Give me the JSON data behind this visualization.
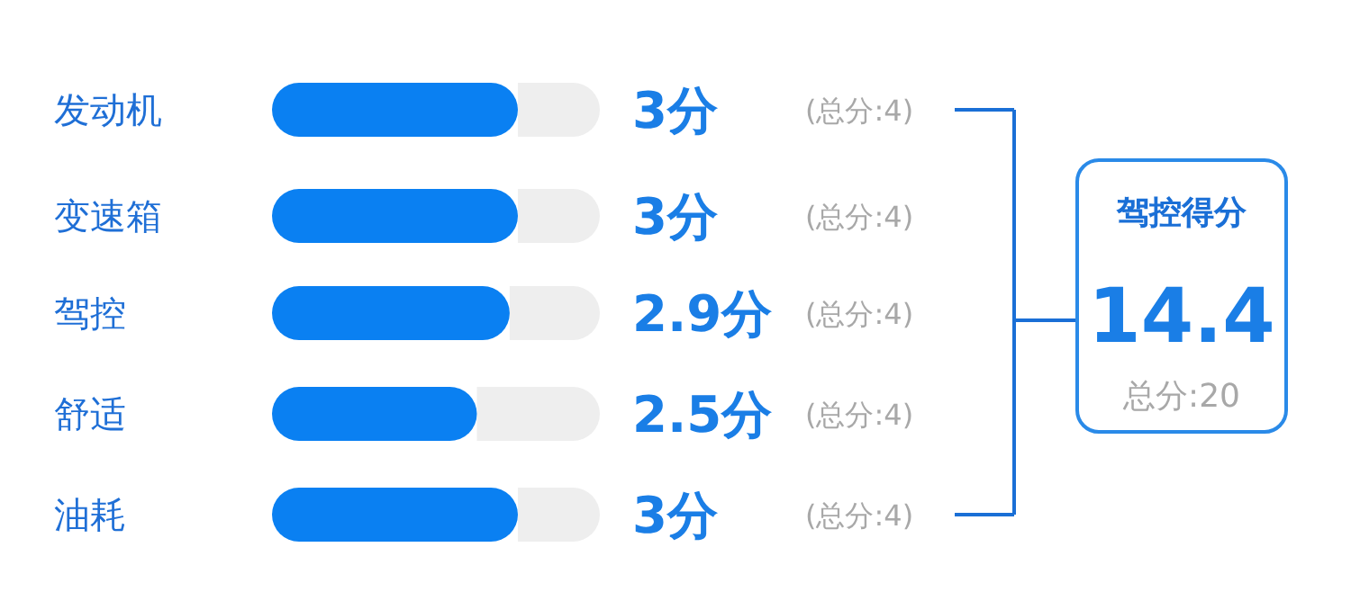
{
  "chart_data": [
    {
      "type": "bar",
      "orientation": "horizontal",
      "categories": [
        "发动机",
        "变速箱",
        "驾控",
        "舒适",
        "油耗"
      ],
      "values": [
        3,
        3,
        2.9,
        2.5,
        3
      ],
      "xlim": [
        0,
        4
      ],
      "color": "#0a80f2",
      "value_labels": [
        "3分",
        "3分",
        "2.9分",
        "2.5分",
        "3分"
      ],
      "annotations": [
        "(总分:4)",
        "(总分:4)",
        "(总分:4)",
        "(总分:4)",
        "(总分:4)"
      ]
    },
    {
      "type": "other",
      "title": "驾控得分",
      "annotations": [
        "14.4",
        "总分:20"
      ]
    }
  ]
}
